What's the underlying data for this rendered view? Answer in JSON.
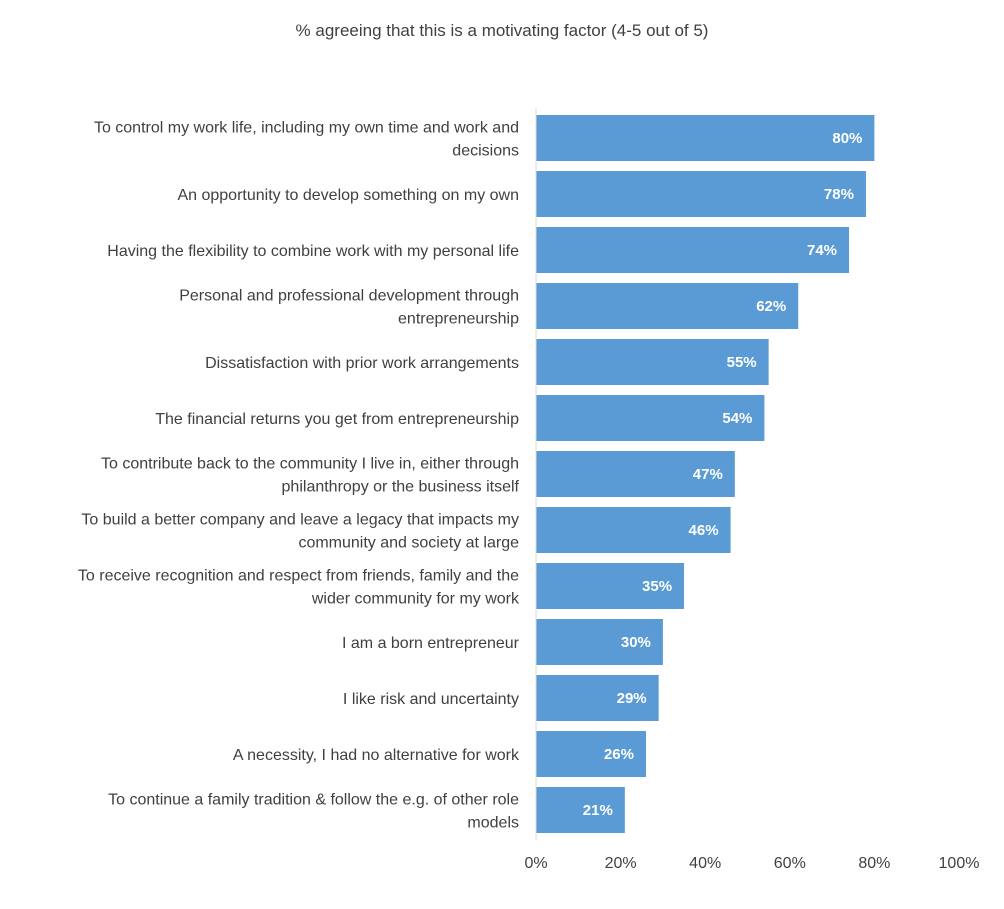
{
  "chart_data": {
    "type": "bar",
    "orientation": "horizontal",
    "title": "% agreeing that this is a motivating factor (4-5 out of 5)",
    "categories": [
      [
        "To control my work life, including my own time and work and",
        "decisions"
      ],
      [
        "An opportunity to develop something on my own"
      ],
      [
        "Having the flexibility to combine work with my personal life"
      ],
      [
        "Personal and professional development through",
        "entrepreneurship"
      ],
      [
        "Dissatisfaction with prior work arrangements"
      ],
      [
        "The financial returns you get from entrepreneurship"
      ],
      [
        "To contribute back to the community I live in, either through",
        "philanthropy or the business itself"
      ],
      [
        "To build a better company and leave a legacy that impacts my",
        "community and society at large"
      ],
      [
        "To receive recognition and respect from friends, family and the",
        "wider community for my work"
      ],
      [
        "I am a born entrepreneur"
      ],
      [
        "I like risk and uncertainty"
      ],
      [
        "A necessity, I had no alternative for work"
      ],
      [
        "To continue a family tradition & follow the e.g. of other role",
        "models"
      ]
    ],
    "values": [
      80,
      78,
      74,
      62,
      55,
      54,
      47,
      46,
      35,
      30,
      29,
      26,
      21
    ],
    "data_labels": [
      "80%",
      "78%",
      "74%",
      "62%",
      "55%",
      "54%",
      "47%",
      "46%",
      "35%",
      "30%",
      "29%",
      "26%",
      "21%"
    ],
    "xlim": [
      0,
      100
    ],
    "xticks": [
      0,
      20,
      40,
      60,
      80,
      100
    ],
    "xtick_labels": [
      "0%",
      "20%",
      "40%",
      "60%",
      "80%",
      "100%"
    ],
    "bar_color": "#5b9bd5",
    "grid": false,
    "legend": "none"
  }
}
